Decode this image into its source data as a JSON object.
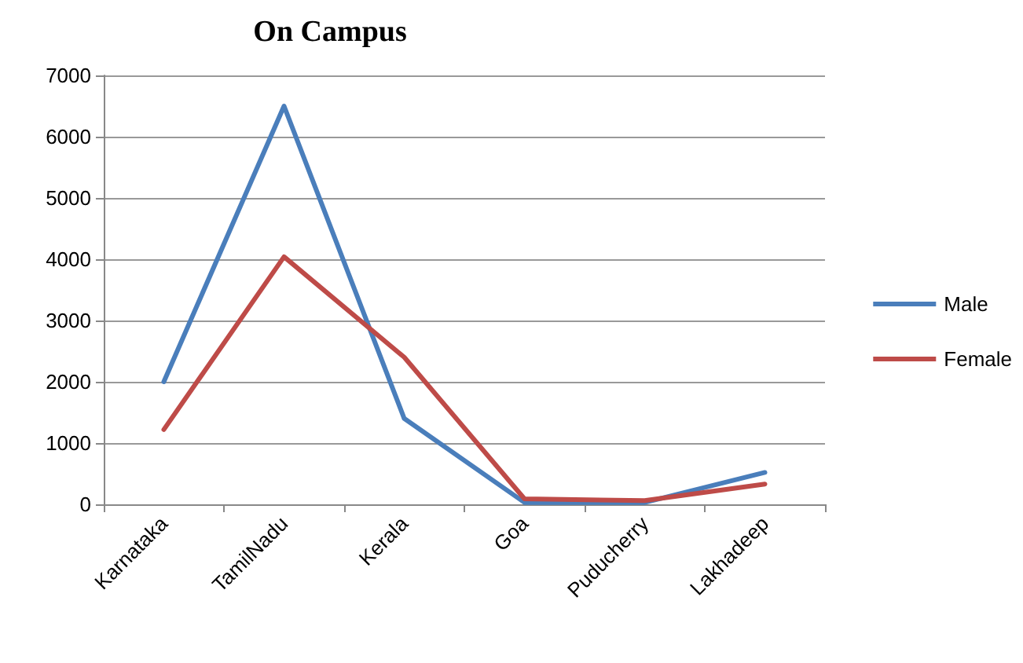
{
  "chart_data": {
    "type": "line",
    "title": "On Campus",
    "categories": [
      "Karnataka",
      "TamilNadu",
      "Kerala",
      "Goa",
      "Puducherry",
      "Lakhadeep"
    ],
    "series": [
      {
        "name": "Male",
        "color": "#4a7ebb",
        "values": [
          2000,
          6500,
          1400,
          30,
          30,
          520
        ]
      },
      {
        "name": "Female",
        "color": "#be4b48",
        "values": [
          1220,
          4040,
          2400,
          90,
          60,
          330
        ]
      }
    ],
    "ylim": [
      0,
      7000
    ],
    "yticks": [
      0,
      1000,
      2000,
      3000,
      4000,
      5000,
      6000,
      7000
    ],
    "grid": "y",
    "legend": "right",
    "marker": "none",
    "line_style": "solid"
  }
}
